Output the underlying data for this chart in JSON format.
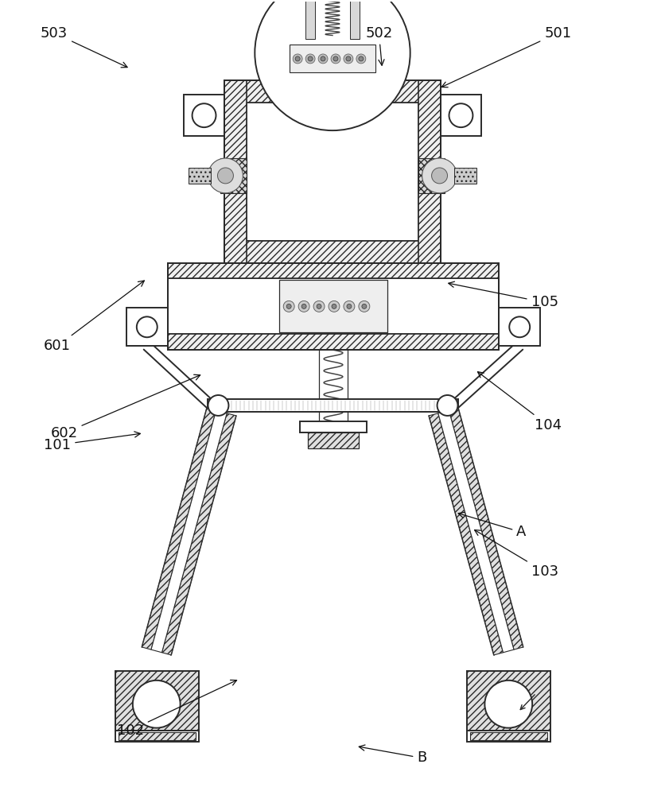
{
  "fig_width": 8.36,
  "fig_height": 10.0,
  "dpi": 100,
  "bg_color": "#ffffff",
  "lc": "#2a2a2a",
  "annotations": [
    [
      "B",
      [
        0.635,
        0.955
      ],
      [
        0.535,
        0.94
      ]
    ],
    [
      "A",
      [
        0.785,
        0.67
      ],
      [
        0.685,
        0.645
      ]
    ],
    [
      "102",
      [
        0.195,
        0.92
      ],
      [
        0.36,
        0.855
      ]
    ],
    [
      "103",
      [
        0.82,
        0.72
      ],
      [
        0.71,
        0.665
      ]
    ],
    [
      "101",
      [
        0.085,
        0.56
      ],
      [
        0.215,
        0.545
      ]
    ],
    [
      "104",
      [
        0.825,
        0.535
      ],
      [
        0.715,
        0.465
      ]
    ],
    [
      "105",
      [
        0.82,
        0.38
      ],
      [
        0.67,
        0.355
      ]
    ],
    [
      "602",
      [
        0.095,
        0.545
      ],
      [
        0.305,
        0.47
      ]
    ],
    [
      "601",
      [
        0.085,
        0.435
      ],
      [
        0.22,
        0.35
      ]
    ],
    [
      "501",
      [
        0.84,
        0.04
      ],
      [
        0.66,
        0.11
      ]
    ],
    [
      "502",
      [
        0.57,
        0.04
      ],
      [
        0.575,
        0.085
      ]
    ],
    [
      "503",
      [
        0.08,
        0.04
      ],
      [
        0.195,
        0.085
      ]
    ]
  ]
}
